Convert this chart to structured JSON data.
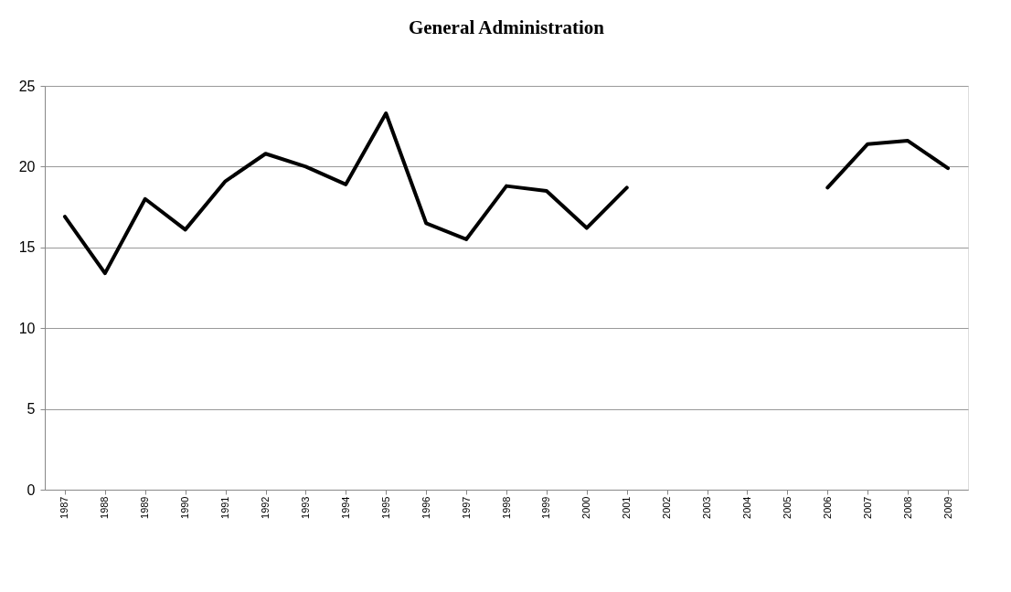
{
  "chart_data": {
    "type": "line",
    "title": "General Administration",
    "categories": [
      "1987",
      "1988",
      "1989",
      "1990",
      "1991",
      "1992",
      "1993",
      "1994",
      "1995",
      "1996",
      "1997",
      "1998",
      "1999",
      "2000",
      "2001",
      "2002",
      "2003",
      "2004",
      "2005",
      "2006",
      "2007",
      "2008",
      "2009"
    ],
    "series": [
      {
        "color": "#000000",
        "values": [
          16.9,
          13.4,
          18.0,
          16.1,
          19.1,
          20.8,
          20.0,
          18.9,
          23.3,
          16.5,
          15.5,
          18.8,
          18.5,
          16.2,
          18.7,
          null,
          null,
          null,
          null,
          18.7,
          21.4,
          21.6,
          19.9
        ]
      }
    ],
    "ylim": [
      0,
      25
    ],
    "yticks": [
      0,
      5,
      10,
      15,
      20,
      25
    ],
    "grid": "y",
    "legend": false,
    "marker": "none",
    "line_style": "solid"
  }
}
